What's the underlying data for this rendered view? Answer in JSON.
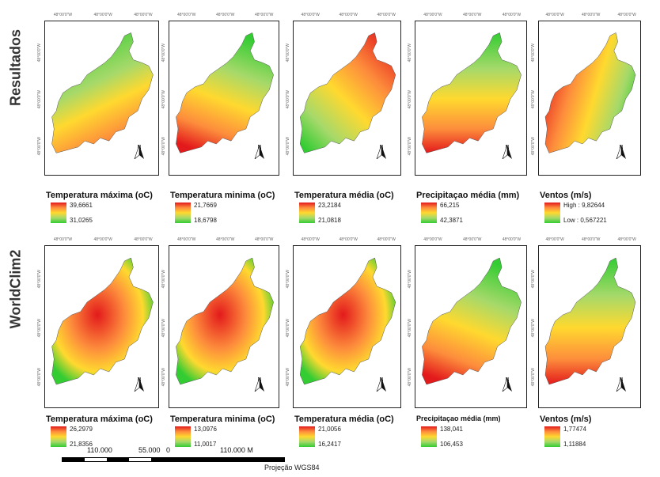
{
  "rows": [
    {
      "label": "Resultados",
      "panels": [
        {
          "title": "Temperatura máxima (oC)",
          "high": "39,6661",
          "low": "31,0265",
          "pattern": "mixed"
        },
        {
          "title": "Temperatura minima (oC)",
          "high": "21,7669",
          "low": "18,6798",
          "pattern": "green-top"
        },
        {
          "title": "Temperatura média (oC)",
          "high": "23,2184",
          "low": "21,0818",
          "pattern": "red-top"
        },
        {
          "title": "Precipitaçao média (mm)",
          "high": "66,215",
          "low": "42,3871",
          "pattern": "red-bottom"
        },
        {
          "title": "Ventos (m/s)",
          "high": "High : 9,82644",
          "low": "Low : 0,567221",
          "pattern": "red-left"
        }
      ]
    },
    {
      "label": "WorldClim2",
      "panels": [
        {
          "title": "Temperatura máxima (oC)",
          "high": "26,2979",
          "low": "21,8356",
          "pattern": "red-center"
        },
        {
          "title": "Temperatura minima (oC)",
          "high": "13,0976",
          "low": "11,0017",
          "pattern": "red-center"
        },
        {
          "title": "Temperatura média (oC)",
          "high": "21,0056",
          "low": "16,2417",
          "pattern": "red-center"
        },
        {
          "title": "Precipitaçao média (mm)",
          "high": "138,041",
          "low": "106,453",
          "pattern": "green-top"
        },
        {
          "title": "Ventos (m/s)",
          "high": "1,77474",
          "low": "1,11884",
          "pattern": "red-bottom"
        }
      ]
    }
  ],
  "north_label": "N",
  "scale": {
    "labels": [
      "110.000",
      "55.000",
      "0",
      "110.000 M"
    ]
  },
  "projection": "Projeção WGS84",
  "tick_text": "48°00'0\"W",
  "colors": {
    "red": "#e31a1c",
    "orange": "#fd8d3c",
    "yellow": "#ffd92f",
    "lightgreen": "#a6d96a",
    "green": "#33cc33"
  }
}
